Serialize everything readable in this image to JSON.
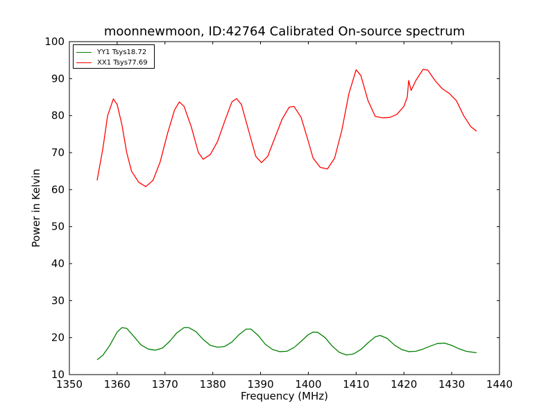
{
  "chart_data": {
    "type": "line",
    "title": "moonnewmoon, ID:42764 Calibrated On-source spectrum",
    "xlabel": "Frequency (MHz)",
    "ylabel": "Power in Kelvin",
    "xlim": [
      1350,
      1440
    ],
    "ylim": [
      10,
      100
    ],
    "xticks": [
      1350,
      1360,
      1370,
      1380,
      1390,
      1400,
      1410,
      1420,
      1430,
      1440
    ],
    "yticks": [
      10,
      20,
      30,
      40,
      50,
      60,
      70,
      80,
      90,
      100
    ],
    "grid": false,
    "legend_position": "top-left",
    "series": [
      {
        "name": "YY1 Tsys18.72",
        "color": "#008000",
        "points": [
          [
            1355.8,
            14.0
          ],
          [
            1357.0,
            15.2
          ],
          [
            1358.5,
            18.0
          ],
          [
            1360.0,
            21.5
          ],
          [
            1361.0,
            22.7
          ],
          [
            1362.0,
            22.5
          ],
          [
            1363.5,
            20.3
          ],
          [
            1365.0,
            18.0
          ],
          [
            1366.5,
            16.9
          ],
          [
            1368.0,
            16.6
          ],
          [
            1369.5,
            17.2
          ],
          [
            1371.0,
            19.0
          ],
          [
            1372.5,
            21.3
          ],
          [
            1374.0,
            22.7
          ],
          [
            1375.0,
            22.7
          ],
          [
            1376.5,
            21.6
          ],
          [
            1378.0,
            19.5
          ],
          [
            1379.5,
            17.9
          ],
          [
            1381.0,
            17.4
          ],
          [
            1382.5,
            17.6
          ],
          [
            1384.0,
            18.8
          ],
          [
            1385.5,
            20.8
          ],
          [
            1387.0,
            22.3
          ],
          [
            1388.0,
            22.3
          ],
          [
            1389.5,
            20.6
          ],
          [
            1391.0,
            18.2
          ],
          [
            1392.5,
            16.8
          ],
          [
            1394.0,
            16.2
          ],
          [
            1395.5,
            16.3
          ],
          [
            1397.0,
            17.3
          ],
          [
            1398.5,
            19.0
          ],
          [
            1400.0,
            20.8
          ],
          [
            1401.0,
            21.5
          ],
          [
            1402.0,
            21.4
          ],
          [
            1403.5,
            20.0
          ],
          [
            1405.0,
            17.7
          ],
          [
            1406.5,
            16.0
          ],
          [
            1408.0,
            15.3
          ],
          [
            1409.5,
            15.6
          ],
          [
            1411.0,
            16.8
          ],
          [
            1412.5,
            18.6
          ],
          [
            1414.0,
            20.2
          ],
          [
            1415.0,
            20.6
          ],
          [
            1416.5,
            19.8
          ],
          [
            1418.0,
            18.0
          ],
          [
            1419.5,
            16.8
          ],
          [
            1421.0,
            16.2
          ],
          [
            1422.5,
            16.3
          ],
          [
            1424.0,
            16.9
          ],
          [
            1425.5,
            17.7
          ],
          [
            1427.0,
            18.4
          ],
          [
            1428.5,
            18.5
          ],
          [
            1430.0,
            17.9
          ],
          [
            1431.5,
            17.0
          ],
          [
            1433.0,
            16.3
          ],
          [
            1435.2,
            15.9
          ]
        ]
      },
      {
        "name": "XX1 Tsys77.69",
        "color": "#ff0000",
        "points": [
          [
            1355.8,
            62.5
          ],
          [
            1357.0,
            71.0
          ],
          [
            1358.0,
            80.0
          ],
          [
            1359.2,
            84.5
          ],
          [
            1360.0,
            83.0
          ],
          [
            1361.0,
            77.5
          ],
          [
            1362.0,
            70.0
          ],
          [
            1363.0,
            65.0
          ],
          [
            1364.5,
            62.0
          ],
          [
            1366.0,
            60.8
          ],
          [
            1367.5,
            62.5
          ],
          [
            1369.0,
            67.5
          ],
          [
            1370.5,
            75.0
          ],
          [
            1372.0,
            81.5
          ],
          [
            1373.0,
            83.7
          ],
          [
            1374.0,
            82.5
          ],
          [
            1375.5,
            77.0
          ],
          [
            1377.0,
            70.0
          ],
          [
            1378.0,
            68.2
          ],
          [
            1379.5,
            69.5
          ],
          [
            1381.0,
            73.0
          ],
          [
            1382.5,
            78.5
          ],
          [
            1384.0,
            83.7
          ],
          [
            1385.0,
            84.6
          ],
          [
            1386.0,
            83.0
          ],
          [
            1387.5,
            76.0
          ],
          [
            1389.0,
            69.0
          ],
          [
            1390.2,
            67.3
          ],
          [
            1391.5,
            69.0
          ],
          [
            1393.0,
            74.0
          ],
          [
            1394.5,
            79.0
          ],
          [
            1396.0,
            82.3
          ],
          [
            1397.0,
            82.5
          ],
          [
            1398.5,
            79.5
          ],
          [
            1400.0,
            73.0
          ],
          [
            1401.0,
            68.5
          ],
          [
            1402.5,
            66.0
          ],
          [
            1404.0,
            65.6
          ],
          [
            1405.5,
            68.5
          ],
          [
            1407.0,
            76.0
          ],
          [
            1408.5,
            86.0
          ],
          [
            1410.0,
            92.4
          ],
          [
            1411.0,
            90.8
          ],
          [
            1412.5,
            84.0
          ],
          [
            1414.0,
            79.8
          ],
          [
            1415.5,
            79.4
          ],
          [
            1417.0,
            79.5
          ],
          [
            1418.5,
            80.3
          ],
          [
            1420.0,
            82.5
          ],
          [
            1420.7,
            85.0
          ],
          [
            1421.0,
            89.5
          ],
          [
            1421.5,
            86.8
          ],
          [
            1422.5,
            89.5
          ],
          [
            1424.0,
            92.5
          ],
          [
            1425.0,
            92.3
          ],
          [
            1426.5,
            89.5
          ],
          [
            1428.0,
            87.3
          ],
          [
            1429.5,
            86.0
          ],
          [
            1431.0,
            84.0
          ],
          [
            1432.5,
            80.0
          ],
          [
            1434.0,
            77.0
          ],
          [
            1435.2,
            75.8
          ]
        ]
      }
    ]
  }
}
